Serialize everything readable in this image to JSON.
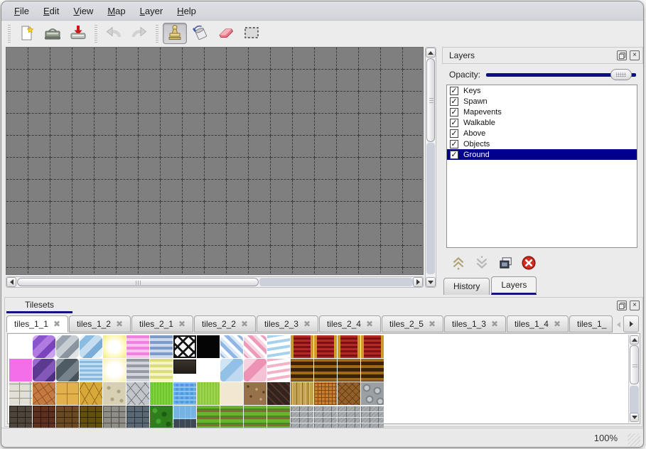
{
  "menu": {
    "items": [
      {
        "label": "File"
      },
      {
        "label": "Edit"
      },
      {
        "label": "View"
      },
      {
        "label": "Map"
      },
      {
        "label": "Layer"
      },
      {
        "label": "Help"
      }
    ]
  },
  "toolbar": {
    "buttons": [
      {
        "icon": "new-file-icon"
      },
      {
        "icon": "open-icon"
      },
      {
        "icon": "save-icon"
      },
      {
        "icon": "undo-icon"
      },
      {
        "icon": "redo-icon"
      },
      {
        "icon": "stamp-tool-icon",
        "active": true
      },
      {
        "icon": "fill-tool-icon"
      },
      {
        "icon": "eraser-tool-icon"
      },
      {
        "icon": "rect-select-tool-icon"
      }
    ]
  },
  "layers_panel": {
    "title": "Layers",
    "opacity_label": "Opacity:",
    "opacity_percent": 100,
    "layers": [
      {
        "name": "Keys",
        "checked": true,
        "selected": false
      },
      {
        "name": "Spawn",
        "checked": true,
        "selected": false
      },
      {
        "name": "Mapevents",
        "checked": true,
        "selected": false
      },
      {
        "name": "Walkable",
        "checked": true,
        "selected": false
      },
      {
        "name": "Above",
        "checked": true,
        "selected": false
      },
      {
        "name": "Objects",
        "checked": true,
        "selected": false
      },
      {
        "name": "Ground",
        "checked": true,
        "selected": true
      }
    ],
    "actions": [
      "move-layer-up",
      "move-layer-down",
      "duplicate-layer",
      "delete-layer"
    ],
    "tabs": [
      {
        "label": "History",
        "active": false
      },
      {
        "label": "Layers",
        "active": true
      }
    ]
  },
  "tilesets_panel": {
    "title": "Tilesets",
    "tabs": [
      {
        "label": "tiles_1_1",
        "active": true
      },
      {
        "label": "tiles_1_2",
        "active": false
      },
      {
        "label": "tiles_2_1",
        "active": false
      },
      {
        "label": "tiles_2_2",
        "active": false
      },
      {
        "label": "tiles_2_3",
        "active": false
      },
      {
        "label": "tiles_2_4",
        "active": false
      },
      {
        "label": "tiles_2_5",
        "active": false
      },
      {
        "label": "tiles_1_3",
        "active": false
      },
      {
        "label": "tiles_1_4",
        "active": false
      },
      {
        "label": "tiles_1_",
        "active": false,
        "truncated": true
      }
    ],
    "palette": [
      [
        "empty",
        "glass-purple",
        "glass-gray",
        "glass-blue",
        "glow-yellow",
        "stripes-pink",
        "stripes-blue",
        "lattice",
        "black",
        "diag-blue",
        "diag-pink",
        "wave-blue",
        "carpet-red",
        "carpet-red",
        "carpet-red",
        "carpet-red"
      ],
      [
        "magenta",
        "glass-dkpurple",
        "glass-dkgray",
        "water-small",
        "glow-pale",
        "stripes-gray",
        "stripes-yellow",
        "plaque",
        "empty",
        "glass-ltblue",
        "glass-ltpink",
        "wave-pink",
        "carpet-brown",
        "carpet-brown",
        "carpet-brown",
        "carpet-brown"
      ],
      [
        "stone-white",
        "cobble-orange",
        "tiles-gold",
        "stone-gold",
        "pebble-beige",
        "stone-gray",
        "grass-green",
        "water-blue",
        "grass-light",
        "cream",
        "gravel-brown",
        "shingle-dark",
        "planks",
        "woven",
        "herringbone",
        "logs-gray"
      ],
      [
        "wall-dark",
        "wall-redbrown",
        "wall-brown",
        "wall-olive",
        "wall-stone",
        "wall-blue",
        "hedge",
        "water-edge",
        "field",
        "field",
        "field",
        "field",
        "brick-gray",
        "brick-gray",
        "brick-gray",
        "brick-gray"
      ]
    ]
  },
  "statusbar": {
    "zoom_level": "100%"
  },
  "icons": {
    "check": "✓",
    "close_tab": "✖",
    "close_panel": "×"
  },
  "colors": {
    "selection_navy": "#00008c",
    "accent_underline": "#14147c",
    "canvas_gray": "#7f7f7f",
    "delete_red": "#d42e20",
    "slider_fill": "#0c0c86"
  }
}
